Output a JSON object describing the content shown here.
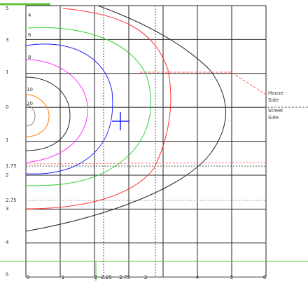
{
  "chart_data": {
    "type": "contour",
    "y_labels": [
      "5",
      "3",
      "1",
      "0",
      "1",
      "1.75",
      "2",
      "2.75",
      "3",
      "4",
      "5"
    ],
    "x_labels": [
      "0",
      "1",
      "2",
      "2.25",
      "2.75",
      "3",
      "4",
      "5",
      "6"
    ],
    "contours": [
      {
        "level": 4,
        "color": "#ff3030"
      },
      {
        "level": 6,
        "color": "#30d030"
      },
      {
        "level": 8,
        "color": "#2020ff"
      },
      {
        "level": 10,
        "color": "#ff30ff"
      },
      {
        "level": 20,
        "color": "#ff8000"
      }
    ],
    "side_labels": [
      [
        "House",
        "Side"
      ],
      [
        "Street",
        "Side"
      ]
    ]
  }
}
